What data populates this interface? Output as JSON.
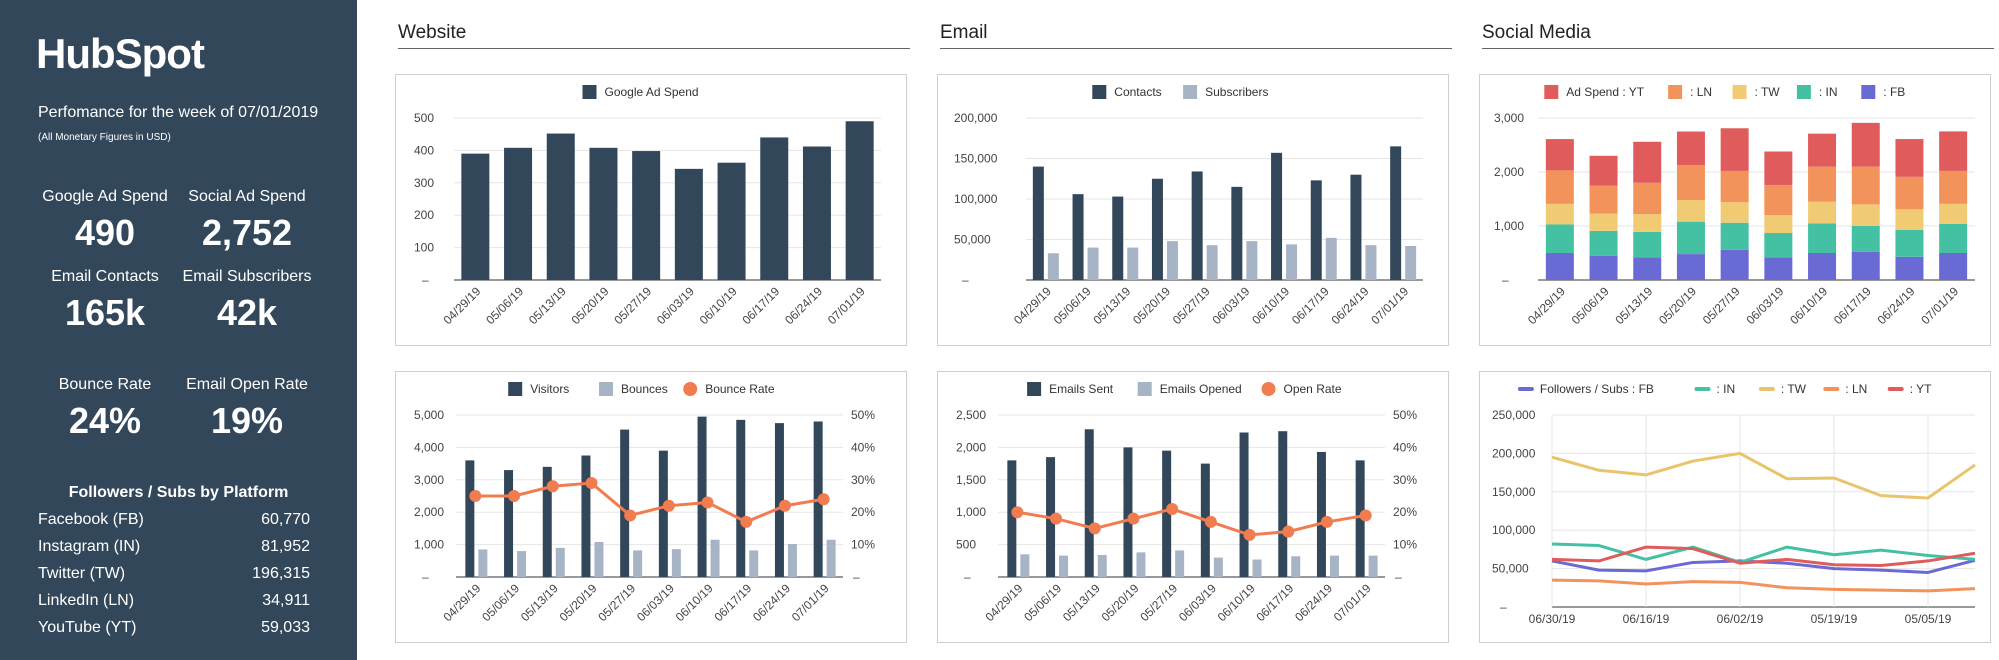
{
  "colors": {
    "dark": "#33475b",
    "light": "#a7b4c5",
    "orange": "#f07c50",
    "red": "#e05c5c",
    "salmon": "#f2935c",
    "yellow": "#f0cb73",
    "green": "#43c1a2",
    "purple": "#6a6ad4",
    "gold": "#e8c46a"
  },
  "sidebar": {
    "logo": "HubSpot",
    "performance": "Perfomance for the week of 07/01/2019",
    "note": "(All Monetary Figures in USD)",
    "metrics": [
      {
        "label": "Google Ad Spend",
        "value": "490"
      },
      {
        "label": "Social Ad Spend",
        "value": "2,752"
      },
      {
        "label": "Email Contacts",
        "value": "165k"
      },
      {
        "label": "Email Subscribers",
        "value": "42k"
      },
      {
        "label": "Bounce Rate",
        "value": "24%"
      },
      {
        "label": "Email Open Rate",
        "value": "19%"
      }
    ],
    "followers_title": "Followers / Subs by Platform",
    "followers": [
      {
        "name": "Facebook (FB)",
        "value": "60,770"
      },
      {
        "name": "Instagram (IN)",
        "value": "81,952"
      },
      {
        "name": "Twitter (TW)",
        "value": "196,315"
      },
      {
        "name": "LinkedIn (LN)",
        "value": "34,911"
      },
      {
        "name": "YouTube (YT)",
        "value": "59,033"
      }
    ]
  },
  "sections": {
    "website": "Website",
    "email": "Email",
    "social": "Social Media"
  },
  "chart_data": [
    {
      "id": "google-ad-spend",
      "type": "bar",
      "categories": [
        "04/29/19",
        "05/06/19",
        "05/13/19",
        "05/20/19",
        "05/27/19",
        "06/03/19",
        "06/10/19",
        "06/17/19",
        "06/24/19",
        "07/01/19"
      ],
      "series": [
        {
          "name": "Google Ad Spend",
          "values": [
            390,
            408,
            452,
            408,
            398,
            343,
            362,
            440,
            412,
            490
          ]
        }
      ],
      "ylim": [
        0,
        500
      ],
      "yticks": [
        100,
        200,
        300,
        400,
        500
      ],
      "ytick_labels": [
        "100",
        "200",
        "300",
        "400",
        "500"
      ]
    },
    {
      "id": "contacts-subscribers",
      "type": "bar",
      "categories": [
        "04/29/19",
        "05/06/19",
        "05/13/19",
        "05/20/19",
        "05/27/19",
        "06/03/19",
        "06/10/19",
        "06/17/19",
        "06/24/19",
        "07/01/19"
      ],
      "series": [
        {
          "name": "Contacts",
          "values": [
            140000,
            106000,
            103000,
            125000,
            134000,
            115000,
            157000,
            123000,
            130000,
            165000
          ]
        },
        {
          "name": "Subscribers",
          "values": [
            33000,
            40000,
            40000,
            48000,
            43000,
            48000,
            44000,
            52000,
            43000,
            42000
          ]
        }
      ],
      "ylim": [
        0,
        200000
      ],
      "yticks": [
        50000,
        100000,
        150000,
        200000
      ],
      "ytick_labels": [
        "50,000",
        "100,000",
        "150,000",
        "200,000"
      ]
    },
    {
      "id": "social-ad-spend",
      "type": "bar",
      "stacked": true,
      "categories": [
        "04/29/19",
        "05/06/19",
        "05/13/19",
        "05/20/19",
        "05/27/19",
        "06/03/19",
        "06/10/19",
        "06/17/19",
        "06/24/19",
        "07/01/19"
      ],
      "series": [
        {
          "name": ": FB",
          "values": [
            500,
            450,
            420,
            480,
            560,
            420,
            500,
            520,
            430,
            500
          ]
        },
        {
          "name": ": IN",
          "values": [
            530,
            460,
            470,
            600,
            500,
            450,
            550,
            480,
            500,
            540
          ]
        },
        {
          "name": ": TW",
          "values": [
            380,
            320,
            330,
            400,
            380,
            330,
            400,
            400,
            380,
            370
          ]
        },
        {
          "name": ": LN",
          "values": [
            620,
            520,
            580,
            650,
            580,
            560,
            650,
            700,
            600,
            610
          ]
        },
        {
          "name": "Ad Spend : YT",
          "values": [
            580,
            550,
            760,
            620,
            790,
            620,
            610,
            810,
            700,
            732
          ]
        }
      ],
      "legend_order": [
        "Ad Spend : YT",
        ": LN",
        ": TW",
        ": IN",
        ": FB"
      ],
      "ylim": [
        0,
        3000
      ],
      "yticks": [
        1000,
        2000,
        3000
      ],
      "ytick_labels": [
        "1,000",
        "2,000",
        "3,000"
      ]
    },
    {
      "id": "visitors-bounces",
      "type": "bar+line",
      "categories": [
        "04/29/19",
        "05/06/19",
        "05/13/19",
        "05/20/19",
        "05/27/19",
        "06/03/19",
        "06/10/19",
        "06/17/19",
        "06/24/19",
        "07/01/19"
      ],
      "series": [
        {
          "name": "Visitors",
          "values": [
            3600,
            3300,
            3400,
            3750,
            4550,
            3900,
            4950,
            4850,
            4750,
            4800
          ]
        },
        {
          "name": "Bounces",
          "values": [
            850,
            800,
            900,
            1080,
            820,
            860,
            1150,
            820,
            1020,
            1150
          ]
        },
        {
          "name": "Bounce Rate",
          "axis": "right",
          "values": [
            25,
            25,
            28,
            29,
            19,
            22,
            23,
            17,
            22,
            24
          ]
        }
      ],
      "ylim": [
        0,
        5000
      ],
      "yticks": [
        1000,
        2000,
        3000,
        4000,
        5000
      ],
      "ytick_labels": [
        "1,000",
        "2,000",
        "3,000",
        "4,000",
        "5,000"
      ],
      "y2lim": [
        0,
        50
      ],
      "y2ticks": [
        10,
        20,
        30,
        40,
        50
      ],
      "y2tick_labels": [
        "10%",
        "20%",
        "30%",
        "40%",
        "50%"
      ]
    },
    {
      "id": "emails-sent-opened",
      "type": "bar+line",
      "categories": [
        "04/29/19",
        "05/06/19",
        "05/13/19",
        "05/20/19",
        "05/27/19",
        "06/03/19",
        "06/10/19",
        "06/17/19",
        "06/24/19",
        "07/01/19"
      ],
      "series": [
        {
          "name": "Emails Sent",
          "values": [
            1800,
            1850,
            2280,
            2000,
            1950,
            1750,
            2230,
            2250,
            1930,
            1800
          ]
        },
        {
          "name": "Emails Opened",
          "values": [
            350,
            330,
            340,
            380,
            410,
            300,
            270,
            320,
            330,
            330
          ]
        },
        {
          "name": "Open Rate",
          "axis": "right",
          "values": [
            20,
            18,
            15,
            18,
            21,
            17,
            13,
            14,
            17,
            19
          ]
        }
      ],
      "ylim": [
        0,
        2500
      ],
      "yticks": [
        500,
        1000,
        1500,
        2000,
        2500
      ],
      "ytick_labels": [
        "500",
        "1,000",
        "1,500",
        "2,000",
        "2,500"
      ],
      "y2lim": [
        0,
        50
      ],
      "y2ticks": [
        10,
        20,
        30,
        40,
        50
      ],
      "y2tick_labels": [
        "10%",
        "20%",
        "30%",
        "40%",
        "50%"
      ]
    },
    {
      "id": "followers-subs",
      "type": "line",
      "x": [
        "06/30/19",
        "06/23/19",
        "06/16/19",
        "06/09/19",
        "06/02/19",
        "05/26/19",
        "05/19/19",
        "05/12/19",
        "05/05/19",
        "04/28/19"
      ],
      "xtick_labels": [
        "06/30/19",
        "06/16/19",
        "06/02/19",
        "05/19/19",
        "05/05/19"
      ],
      "series": [
        {
          "name": "Followers / Subs : FB",
          "values": [
            60000,
            48000,
            47000,
            58000,
            60000,
            57000,
            50000,
            48000,
            45000,
            60770
          ]
        },
        {
          "name": ": IN",
          "values": [
            82000,
            80000,
            62000,
            78000,
            58000,
            78000,
            68000,
            74000,
            67000,
            62000
          ]
        },
        {
          "name": ": TW",
          "values": [
            195000,
            178000,
            172000,
            190000,
            200000,
            167000,
            168000,
            145000,
            142000,
            185000
          ]
        },
        {
          "name": ": LN",
          "values": [
            35000,
            34000,
            30000,
            33000,
            32000,
            25000,
            23000,
            22000,
            21000,
            24000
          ]
        },
        {
          "name": ": YT",
          "values": [
            62000,
            60000,
            78000,
            76000,
            57000,
            62000,
            55000,
            54000,
            60000,
            70000
          ]
        }
      ],
      "ylim": [
        0,
        250000
      ],
      "yticks": [
        50000,
        100000,
        150000,
        200000,
        250000
      ],
      "ytick_labels": [
        "50,000",
        "100,000",
        "150,000",
        "200,000",
        "250,000"
      ]
    }
  ]
}
